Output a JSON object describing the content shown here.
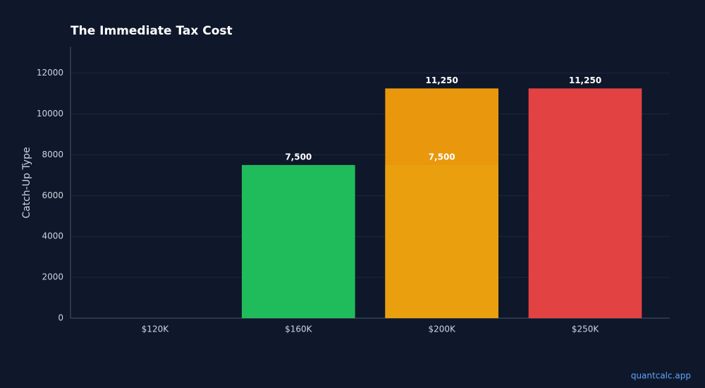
{
  "chart_data": {
    "type": "bar",
    "title": "The Immediate Tax Cost",
    "y_label": "Catch-Up Type",
    "categories": [
      "$120K",
      "$160K",
      "$200K",
      "$250K"
    ],
    "series": [
      {
        "colors": [
          "#22c55e",
          "#22c55e",
          "#22c55e",
          "#22c55e"
        ],
        "values": [
          null,
          7500,
          7500,
          null
        ],
        "value_labels": [
          null,
          "7,500",
          "7,500",
          null
        ]
      },
      {
        "colors": [
          "#f59e0b",
          "#f59e0b",
          "#f59e0b",
          "#ef4444"
        ],
        "values": [
          null,
          null,
          11250,
          11250
        ],
        "value_labels": [
          null,
          null,
          "11,250",
          "11,250"
        ]
      }
    ],
    "ylim": [
      0,
      13300
    ],
    "yticks": [
      0,
      2000,
      4000,
      6000,
      8000,
      10000,
      12000
    ],
    "grid": true,
    "footer": "quantcalc.app"
  }
}
